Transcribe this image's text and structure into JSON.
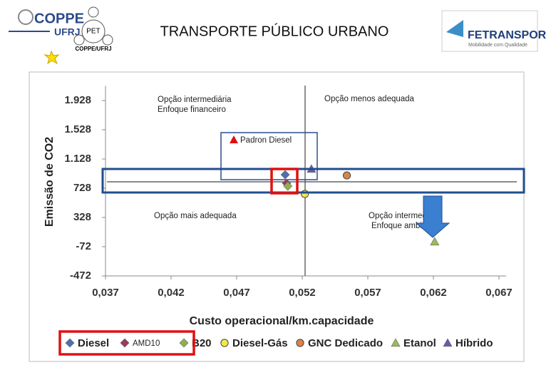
{
  "header": {
    "title": "TRANSPORTE PÚBLICO URBANO",
    "logo_left": "COPPE",
    "logo_left_sub": "UFRJ",
    "logo_pet": "PET",
    "logo_pet_caption": "COPPE/UFRJ",
    "logo_right": "FETRANSPOR",
    "logo_right_sub": "Mobilidade com Qualidade"
  },
  "chart_data": {
    "type": "scatter",
    "x_label": "Custo operacional/km.capacidade",
    "y_label": "Emissão de CO2",
    "xlim": [
      0.037,
      0.067
    ],
    "xticks": [
      {
        "value": 0.037,
        "label": "0,037"
      },
      {
        "value": 0.042,
        "label": "0,042"
      },
      {
        "value": 0.047,
        "label": "0,047"
      },
      {
        "value": 0.052,
        "label": "0,052"
      },
      {
        "value": 0.057,
        "label": "0,057"
      },
      {
        "value": 0.062,
        "label": "0,062"
      },
      {
        "value": 0.067,
        "label": "0,067"
      }
    ],
    "ylim": [
      -472,
      2128
    ],
    "yticks": [
      -472,
      -72,
      328,
      728,
      {
        "value": 1128,
        "label": "1.128"
      },
      {
        "value": 1528,
        "label": "1.528"
      },
      {
        "value": 1928,
        "label": "1.928"
      }
    ],
    "series": [
      {
        "name": "Diesel",
        "color": "#4f6fb0",
        "marker": "diamond",
        "x": [
          0.0507
        ],
        "values": [
          913
        ]
      },
      {
        "name": "AMD10",
        "color": "#9a3b5c",
        "marker": "diamond",
        "x": [
          0.0508
        ],
        "values": [
          796
        ]
      },
      {
        "name": "B20",
        "color": "#8fb04b",
        "marker": "diamond",
        "x": [
          0.0509
        ],
        "values": [
          757
        ]
      },
      {
        "name": "Diesel-Gás",
        "color": "#f3e84a",
        "marker": "circle",
        "x": [
          0.0522
        ],
        "values": [
          650
        ]
      },
      {
        "name": "GNC Dedicado",
        "color": "#d9844a",
        "marker": "circle",
        "x": [
          0.0554
        ],
        "values": [
          903
        ]
      },
      {
        "name": "Etanol",
        "color": "#9bbb59",
        "marker": "triangle",
        "x": [
          0.0621
        ],
        "values": [
          -4
        ]
      },
      {
        "name": "Híbrido",
        "color": "#6a5aa8",
        "marker": "triangle",
        "x": [
          0.0527
        ],
        "values": [
          991
        ]
      }
    ],
    "annotations": [
      "Opção intermediária",
      "Enfoque financeiro",
      "Opção menos adequada",
      "Padron Diesel",
      "Opção mais adequada",
      "Opção intermediária",
      "Enfoque ambiental"
    ]
  }
}
